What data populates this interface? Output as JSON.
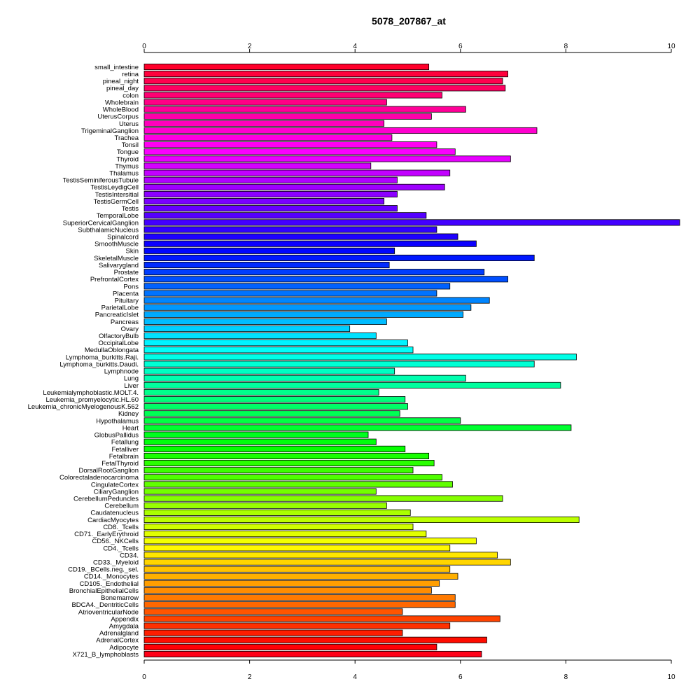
{
  "chart_data": {
    "type": "bar",
    "orientation": "horizontal",
    "title": "5078_207867_at",
    "xlabel": "",
    "ylabel": "",
    "xlim": [
      0,
      10
    ],
    "x_ticks": [
      0,
      2,
      4,
      6,
      8,
      10
    ],
    "x_tick_labels": [
      "0",
      "2",
      "4",
      "6",
      "8",
      "10"
    ],
    "axes": [
      "top",
      "bottom"
    ],
    "grid": false,
    "color_scheme": "rainbow (red at top and bottom, through magenta, purple, blue, cyan, green, yellow, orange)",
    "categories": [
      "small_intestine",
      "retina",
      "pineal_night",
      "pineal_day",
      "colon",
      "Wholebrain",
      "WholeBlood",
      "UterusCorpus",
      "Uterus",
      "TrigeminalGanglion",
      "Trachea",
      "Tonsil",
      "Tongue",
      "Thyroid",
      "Thymus",
      "Thalamus",
      "TestisSeminiferousTubule",
      "TestisLeydigCell",
      "TestisIntersitial",
      "TestisGermCell",
      "Testis",
      "TemporalLobe",
      "SuperiorCervicalGanglion",
      "SubthalamicNucleus",
      "Spinalcord",
      "SmoothMuscle",
      "Skin",
      "SkeletalMuscle",
      "Salivarygland",
      "Prostate",
      "PrefrontalCortex",
      "Pons",
      "Placenta",
      "Pituitary",
      "ParietalLobe",
      "PancreaticIslet",
      "Pancreas",
      "Ovary",
      "OlfactoryBulb",
      "OccipitalLobe",
      "MedullaOblongata",
      "Lymphoma_burkitts.Raji.",
      "Lymphoma_burkitts.Daudi.",
      "Lymphnode",
      "Lung",
      "Liver",
      "Leukemialymphoblastic.MOLT.4.",
      "Leukemia_promyelocytic.HL.60",
      "Leukemia_chronicMyelogenousK.562",
      "Kidney",
      "Hypothalamus",
      "Heart",
      "GlobusPallidus",
      "Fetallung",
      "Fetalliver",
      "Fetalbrain",
      "FetalThyroid",
      "DorsalRootGanglion",
      "Colorectaladenocarcinoma",
      "CingulateCortex",
      "CiliaryGanglion",
      "CerebellumPeduncles",
      "Cerebellum",
      "Caudatenucleus",
      "CardiacMyocytes",
      "CD8._Tcells",
      "CD71._EarlyErythroid",
      "CD56._NKCells",
      "CD4._Tcells",
      "CD34.",
      "CD33._Myeloid",
      "CD19._BCells.neg._sel.",
      "CD14._Monocytes",
      "CD105._Endothelial",
      "BronchialEpithelialCells",
      "Bonemarrow",
      "BDCA4._DentriticCells",
      "AtrioventricularNode",
      "Appendix",
      "Amygdala",
      "Adrenalgland",
      "AdrenalCortex",
      "Adipocyte",
      "X721_B_lymphoblasts"
    ],
    "values": [
      5.4,
      6.9,
      6.8,
      6.85,
      5.65,
      4.6,
      6.1,
      5.45,
      4.55,
      7.45,
      4.7,
      5.55,
      5.9,
      6.95,
      4.3,
      5.8,
      4.8,
      5.7,
      4.8,
      4.55,
      4.8,
      5.35,
      10.2,
      5.55,
      5.95,
      6.3,
      4.75,
      7.4,
      4.65,
      6.45,
      6.9,
      5.8,
      5.55,
      6.55,
      6.2,
      6.05,
      4.6,
      3.9,
      4.4,
      5.0,
      5.1,
      8.2,
      7.4,
      4.75,
      6.1,
      7.9,
      4.45,
      4.95,
      5.0,
      4.85,
      6.0,
      8.1,
      4.25,
      4.4,
      4.95,
      5.4,
      5.5,
      5.1,
      5.65,
      5.85,
      4.4,
      6.8,
      4.6,
      5.05,
      8.25,
      5.1,
      5.35,
      6.3,
      5.8,
      6.7,
      6.95,
      5.8,
      5.95,
      5.6,
      5.45,
      5.9,
      5.9,
      4.9,
      6.75,
      5.8,
      4.9,
      6.5,
      5.55,
      6.4
    ]
  }
}
